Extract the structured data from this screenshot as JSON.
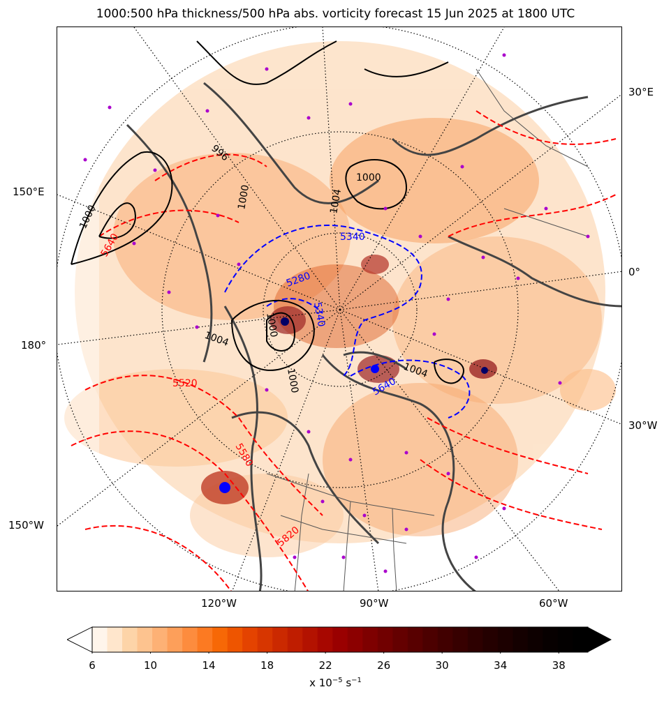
{
  "title": "1000:500 hPa thickness/500 hPa abs. vorticity forecast 15 Jun 2025 at 1800 UTC",
  "map": {
    "lon_labels_left": [
      "150°E",
      "180°",
      "150°W"
    ],
    "lon_labels_right": [
      "30°E",
      "0°",
      "30°W"
    ],
    "lon_labels_bottom": [
      "120°W",
      "90°W",
      "60°W"
    ],
    "thickness_labels": [
      "5520",
      "5640",
      "5340",
      "5280",
      "5340",
      "5580",
      "5820",
      "5640"
    ],
    "mslp_labels": [
      "1000",
      "996",
      "1000",
      "1004",
      "1000",
      "1004",
      "1000",
      "1004",
      "1000"
    ],
    "colors": {
      "thickness_warm": "#ff0000",
      "thickness_cold": "#0000ff",
      "isobars": "#000000",
      "coastlines": "#444444",
      "stations": "#aa00cc"
    }
  },
  "colorbar": {
    "tick_labels": [
      "6",
      "10",
      "14",
      "18",
      "22",
      "26",
      "30",
      "34",
      "38"
    ],
    "units_text": "x 10",
    "units_exp": "−5",
    "units_tail": " s",
    "units_exp2": "−1",
    "range": [
      6,
      40
    ],
    "step": 1,
    "colors": [
      "#fff5eb",
      "#ffe6cc",
      "#fdd4a8",
      "#fdc38f",
      "#fdb175",
      "#fd9f5a",
      "#fd8c3e",
      "#fc7a22",
      "#f76806",
      "#ee5500",
      "#e44300",
      "#d73600",
      "#cb2900",
      "#bf1d00",
      "#b31200",
      "#a70700",
      "#9a0000",
      "#8c0000",
      "#7e0000",
      "#710000",
      "#640000",
      "#580000",
      "#4c0000",
      "#410000",
      "#370000",
      "#2d0000",
      "#240000",
      "#1c0000",
      "#140000",
      "#0d0000",
      "#070000",
      "#030000",
      "#000000"
    ]
  }
}
